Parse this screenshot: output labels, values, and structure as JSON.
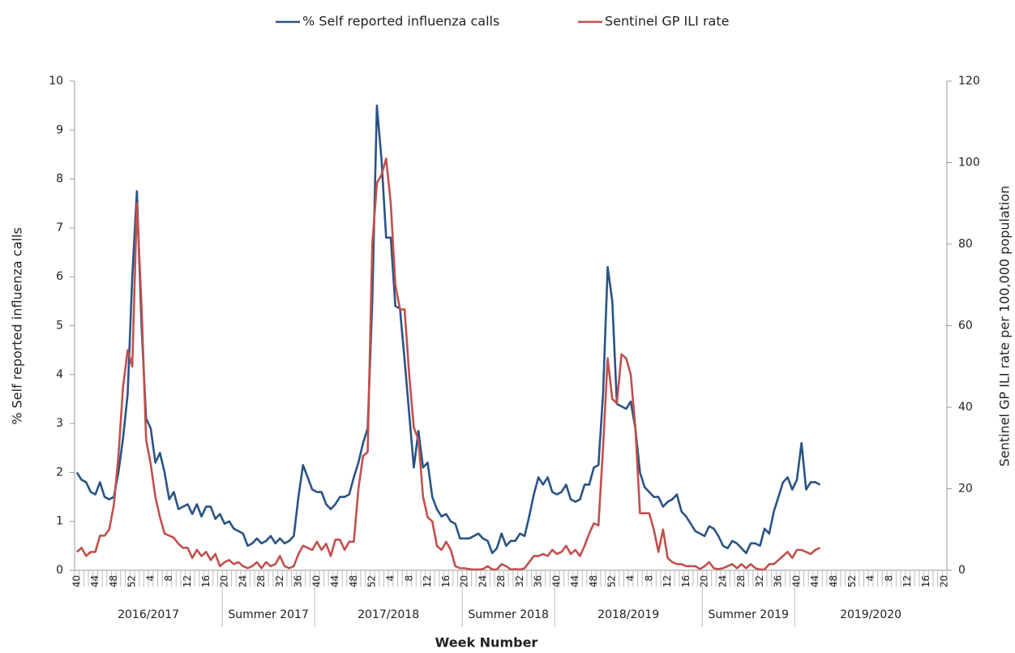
{
  "chart_data": {
    "type": "line",
    "x_label": "Week Number",
    "y_label": "% Self reported influenza calls",
    "y2_label": "Sentinel GP ILI rate per 100,000 population",
    "legend": "top",
    "categories": [
      "40",
      null,
      null,
      null,
      "44",
      null,
      null,
      null,
      "48",
      null,
      null,
      null,
      "52",
      null,
      null,
      null,
      "4",
      null,
      null,
      null,
      "8",
      null,
      null,
      null,
      "12",
      null,
      null,
      null,
      "16",
      null,
      null,
      null,
      "20",
      null,
      null,
      null,
      "24",
      null,
      null,
      null,
      "28",
      null,
      null,
      null,
      "32",
      null,
      null,
      null,
      "36",
      null,
      null,
      null,
      "40",
      null,
      null,
      null,
      "44",
      null,
      null,
      null,
      "48",
      null,
      null,
      null,
      "52",
      null,
      null,
      null,
      "4",
      null,
      null,
      null,
      "8",
      null,
      null,
      null,
      "12",
      null,
      null,
      null,
      "16",
      null,
      null,
      null,
      "20",
      null,
      null,
      null,
      "24",
      null,
      null,
      null,
      "28",
      null,
      null,
      null,
      "32",
      null,
      null,
      null,
      "36",
      null,
      null,
      null,
      "40",
      null,
      null,
      null,
      "44",
      null,
      null,
      null,
      "48",
      null,
      null,
      null,
      "52",
      null,
      null,
      null,
      "4",
      null,
      null,
      null,
      "8",
      null,
      null,
      null,
      "12",
      null,
      null,
      null,
      "16",
      null,
      null,
      null,
      "20",
      null,
      null,
      null,
      "24",
      null,
      null,
      null,
      "28",
      null,
      null,
      null,
      "32",
      null,
      null,
      null,
      "36",
      null,
      null,
      null,
      "40",
      null,
      null,
      null,
      "44",
      null,
      null,
      null,
      "48",
      null,
      null,
      null,
      "52",
      null,
      null,
      null,
      "4",
      null,
      null,
      null,
      "8",
      null,
      null,
      null,
      "12",
      null,
      null,
      null,
      "16",
      null,
      null,
      null,
      "20"
    ],
    "groups": [
      {
        "label": "2016/2017",
        "from": 0,
        "to": 31
      },
      {
        "label": "Summer 2017",
        "from": 32,
        "to": 51
      },
      {
        "label": "2017/2018",
        "from": 52,
        "to": 83
      },
      {
        "label": "Summer 2018",
        "from": 84,
        "to": 103
      },
      {
        "label": "2018/2019",
        "from": 104,
        "to": 135
      },
      {
        "label": "Summer 2019",
        "from": 136,
        "to": 155
      },
      {
        "label": "2019/2020",
        "from": 156,
        "to": 188
      }
    ],
    "series": [
      {
        "name": "% Self reported influenza calls",
        "color": "#2a5386",
        "values": [
          2.0,
          1.85,
          1.8,
          1.6,
          1.55,
          1.8,
          1.5,
          1.45,
          1.5,
          2.0,
          2.7,
          3.6,
          6.0,
          7.75,
          5.0,
          3.1,
          2.9,
          2.2,
          2.4,
          2.0,
          1.45,
          1.6,
          1.25,
          1.3,
          1.35,
          1.15,
          1.35,
          1.1,
          1.3,
          1.3,
          1.05,
          1.15,
          0.95,
          1.0,
          0.85,
          0.8,
          0.75,
          0.5,
          0.55,
          0.65,
          0.55,
          0.6,
          0.7,
          0.55,
          0.65,
          0.55,
          0.6,
          0.7,
          1.5,
          2.15,
          1.9,
          1.65,
          1.6,
          1.6,
          1.35,
          1.25,
          1.35,
          1.5,
          1.5,
          1.55,
          1.9,
          2.2,
          2.6,
          2.9,
          5.5,
          9.5,
          8.4,
          6.8,
          6.8,
          5.4,
          5.35,
          4.3,
          3.2,
          2.1,
          2.85,
          2.1,
          2.2,
          1.5,
          1.25,
          1.1,
          1.15,
          1.0,
          0.95,
          0.65,
          0.65,
          0.65,
          0.7,
          0.75,
          0.65,
          0.6,
          0.35,
          0.45,
          0.75,
          0.5,
          0.6,
          0.6,
          0.75,
          0.7,
          1.1,
          1.55,
          1.9,
          1.75,
          1.9,
          1.6,
          1.55,
          1.6,
          1.75,
          1.45,
          1.4,
          1.45,
          1.75,
          1.75,
          2.1,
          2.15,
          3.6,
          6.2,
          5.5,
          3.4,
          3.35,
          3.3,
          3.45,
          2.9,
          2.0,
          1.7,
          1.6,
          1.5,
          1.5,
          1.3,
          1.4,
          1.45,
          1.55,
          1.2,
          1.1,
          0.95,
          0.8,
          0.75,
          0.7,
          0.9,
          0.85,
          0.7,
          0.5,
          0.45,
          0.6,
          0.55,
          0.45,
          0.35,
          0.55,
          0.55,
          0.5,
          0.85,
          0.75,
          1.2,
          1.5,
          1.8,
          1.9,
          1.65,
          1.85,
          2.6,
          1.65,
          1.8,
          1.8,
          1.75,
          null,
          null,
          null,
          null,
          null,
          null,
          null,
          null,
          null,
          null,
          null,
          null,
          null,
          null,
          null,
          null,
          null,
          null,
          null,
          null,
          null,
          null,
          null,
          null,
          null,
          null,
          null
        ]
      },
      {
        "name": "Sentinel GP ILI rate",
        "color": "#c0504d",
        "axis": "y2",
        "values": [
          4.5,
          5.5,
          3.5,
          4.5,
          4.5,
          8.5,
          8.5,
          10,
          16,
          28,
          45,
          54,
          50,
          90,
          65,
          32,
          26,
          18,
          13,
          9,
          8.5,
          8,
          6.5,
          5.5,
          5.5,
          3,
          5,
          3.5,
          4.5,
          2.5,
          4,
          1,
          2,
          2.5,
          1.5,
          2,
          1,
          0.5,
          1,
          2,
          0.5,
          2,
          1,
          1.5,
          3.5,
          1,
          0.5,
          1,
          4,
          6,
          5.5,
          5,
          7,
          5,
          6.5,
          3.5,
          7.5,
          7.5,
          5,
          7,
          7,
          20,
          28,
          29,
          80,
          95,
          97,
          101,
          90,
          70,
          64,
          64,
          48,
          35,
          32,
          18,
          13,
          12,
          6,
          5,
          7,
          5,
          1,
          0.5,
          0.5,
          0.3,
          0.2,
          0.2,
          0.3,
          1,
          0.2,
          0.2,
          1.5,
          1,
          0.2,
          0.3,
          0.2,
          0.5,
          2,
          3.5,
          3.5,
          4,
          3.5,
          5,
          4,
          4.5,
          6,
          4,
          5,
          3.5,
          6,
          9,
          11.5,
          11,
          30,
          52,
          42,
          41,
          53,
          52,
          48,
          35,
          14,
          14,
          14,
          10,
          4.5,
          10,
          3,
          2,
          1.5,
          1.5,
          1,
          1,
          1,
          0.3,
          1,
          2,
          0.5,
          0.3,
          0.5,
          1,
          1.5,
          0.5,
          1.5,
          0.5,
          1.5,
          0.5,
          0.2,
          0.2,
          1.5,
          1.5,
          2.5,
          3.5,
          4.5,
          3,
          5,
          5,
          4.5,
          4,
          5,
          5.5,
          null,
          null,
          null,
          null,
          null,
          null,
          null,
          null,
          null,
          null,
          null,
          null,
          null,
          null,
          null,
          null,
          null,
          null,
          null,
          null,
          null,
          null,
          null,
          null,
          null,
          null,
          null
        ]
      }
    ],
    "ylim": [
      0,
      10
    ],
    "yticks": [
      0,
      1,
      2,
      3,
      4,
      5,
      6,
      7,
      8,
      9,
      10
    ],
    "y2lim": [
      0,
      120
    ],
    "y2ticks": [
      0,
      20,
      40,
      60,
      80,
      100,
      120
    ],
    "grid": false
  }
}
